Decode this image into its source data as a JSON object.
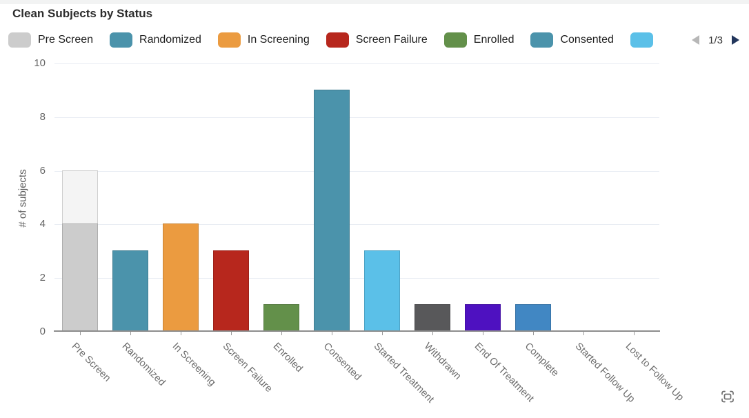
{
  "header": {
    "title": "Clean Subjects by Status"
  },
  "legend": {
    "items": [
      {
        "label": "Pre Screen",
        "color": "#cccccc"
      },
      {
        "label": "Randomized",
        "color": "#4b93ab"
      },
      {
        "label": "In Screening",
        "color": "#eb9b40"
      },
      {
        "label": "Screen Failure",
        "color": "#b7271d"
      },
      {
        "label": "Enrolled",
        "color": "#63904a"
      },
      {
        "label": "Consented",
        "color": "#4b93ab"
      },
      {
        "label": "",
        "color": "#5bc0e8"
      }
    ],
    "pagination": {
      "page_label": "1/3",
      "prev_color": "#b7b7b7",
      "next_color": "#22365c"
    }
  },
  "chart_data": {
    "type": "bar",
    "title": "Clean Subjects by Status",
    "xlabel": "",
    "ylabel": "# of subjects",
    "ylim": [
      0,
      10
    ],
    "yticks": [
      0,
      2,
      4,
      6,
      8,
      10
    ],
    "grid": true,
    "legend_position": "top",
    "categories": [
      "Pre Screen",
      "Randomized",
      "In Screening",
      "Screen Failure",
      "Enrolled",
      "Consented",
      "Started Treatment",
      "Withdrawn",
      "End Of Treatment",
      "Complete",
      "Started Follow Up",
      "Lost to Follow Up"
    ],
    "bars": [
      {
        "category": "Pre Screen",
        "total": 6,
        "segments": [
          {
            "value": 4,
            "color": "#cccccc"
          },
          {
            "value": 2,
            "color": "#f4f4f4"
          }
        ]
      },
      {
        "category": "Randomized",
        "total": 3,
        "segments": [
          {
            "value": 3,
            "color": "#4b93ab"
          }
        ]
      },
      {
        "category": "In Screening",
        "total": 4,
        "segments": [
          {
            "value": 4,
            "color": "#eb9b40"
          }
        ]
      },
      {
        "category": "Screen Failure",
        "total": 3,
        "segments": [
          {
            "value": 3,
            "color": "#b7271d"
          }
        ]
      },
      {
        "category": "Enrolled",
        "total": 1,
        "segments": [
          {
            "value": 1,
            "color": "#63904a"
          }
        ]
      },
      {
        "category": "Consented",
        "total": 9,
        "segments": [
          {
            "value": 9,
            "color": "#4b93ab"
          }
        ]
      },
      {
        "category": "Started Treatment",
        "total": 3,
        "segments": [
          {
            "value": 3,
            "color": "#5bc0e8"
          }
        ]
      },
      {
        "category": "Withdrawn",
        "total": 1,
        "segments": [
          {
            "value": 1,
            "color": "#58585a"
          }
        ]
      },
      {
        "category": "End Of Treatment",
        "total": 1,
        "segments": [
          {
            "value": 1,
            "color": "#4e11c0"
          }
        ]
      },
      {
        "category": "Complete",
        "total": 1,
        "segments": [
          {
            "value": 1,
            "color": "#4187c3"
          }
        ]
      },
      {
        "category": "Started Follow Up",
        "total": 0,
        "segments": []
      },
      {
        "category": "Lost to Follow Up",
        "total": 0,
        "segments": []
      }
    ],
    "axis_colors": {
      "grid": "#e8ecf3",
      "axis_line": "#8d8d8d",
      "tick_text": "#666666",
      "x_label_text": "#6b6b6b"
    }
  },
  "icons": {
    "fullscreen": "expand-corners"
  }
}
